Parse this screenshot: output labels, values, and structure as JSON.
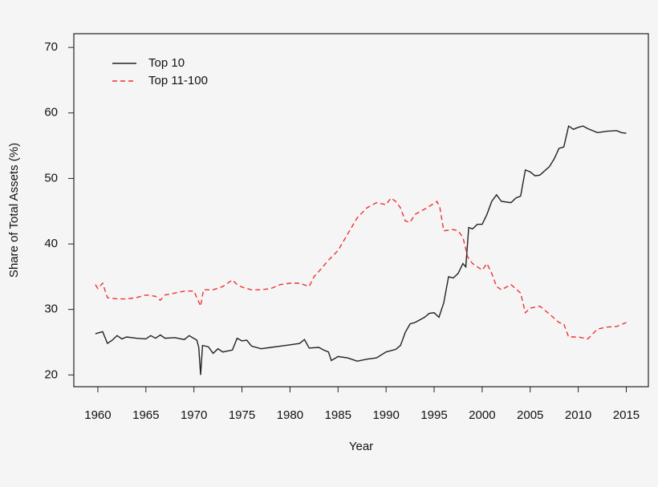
{
  "chart_data": {
    "type": "line",
    "xlabel": "Year",
    "ylabel": "Share of Total Assets (%)",
    "xlim": [
      1957.5,
      2017.3
    ],
    "ylim": [
      18.2,
      72.1
    ],
    "xticks": [
      1960,
      1965,
      1970,
      1975,
      1980,
      1985,
      1990,
      1995,
      2000,
      2005,
      2010,
      2015
    ],
    "yticks": [
      20,
      30,
      40,
      50,
      60,
      70
    ],
    "legend": "top-left",
    "series": [
      {
        "name": "Top 10",
        "color": "#222222",
        "linestyle": "solid",
        "x": [
          1959.75,
          1960.5,
          1961,
          1961.5,
          1962,
          1962.5,
          1963,
          1964,
          1965,
          1965.5,
          1966,
          1966.5,
          1967,
          1968,
          1969,
          1969.5,
          1970.3,
          1970.5,
          1970.7,
          1970.9,
          1971.5,
          1972,
          1972.5,
          1973,
          1974,
          1974.5,
          1975,
          1975.5,
          1976,
          1977,
          1978,
          1979,
          1980,
          1981,
          1981.5,
          1982,
          1983,
          1983.5,
          1984,
          1984.3,
          1985,
          1986,
          1987,
          1988,
          1989,
          1990,
          1991,
          1991.5,
          1992,
          1992.5,
          1993,
          1994,
          1994.5,
          1995,
          1995.5,
          1996,
          1996.5,
          1997,
          1997.5,
          1998,
          1998.3,
          1998.6,
          1999,
          1999.5,
          2000,
          2000.5,
          2001,
          2001.5,
          2002,
          2003,
          2003.5,
          2004,
          2004.5,
          2005,
          2005.5,
          2006,
          2007,
          2007.5,
          2008,
          2008.5,
          2009,
          2009.5,
          2010,
          2010.5,
          2011,
          2012,
          2013,
          2014,
          2014.5,
          2015
        ],
        "values": [
          26.3,
          26.6,
          24.8,
          25.3,
          26.0,
          25.5,
          25.8,
          25.6,
          25.5,
          26.0,
          25.6,
          26.1,
          25.6,
          25.7,
          25.4,
          26.0,
          25.3,
          24.2,
          20.0,
          24.5,
          24.3,
          23.3,
          24.0,
          23.5,
          23.8,
          25.6,
          25.2,
          25.3,
          24.4,
          24.0,
          24.2,
          24.4,
          24.6,
          24.8,
          25.4,
          24.1,
          24.2,
          23.8,
          23.5,
          22.2,
          22.8,
          22.6,
          22.1,
          22.4,
          22.6,
          23.5,
          23.9,
          24.5,
          26.5,
          27.8,
          28.0,
          28.8,
          29.4,
          29.5,
          28.8,
          31.0,
          35.0,
          34.8,
          35.5,
          37.0,
          36.5,
          42.5,
          42.3,
          43.0,
          43.0,
          44.5,
          46.5,
          47.5,
          46.5,
          46.3,
          47.0,
          47.3,
          51.3,
          51.0,
          50.4,
          50.5,
          51.8,
          53.0,
          54.6,
          54.8,
          58.0,
          57.5,
          57.8,
          58.0,
          57.6,
          57.0,
          57.2,
          57.3,
          57.0,
          56.9
        ]
      },
      {
        "name": "Top 11-100",
        "color": "#ee3333",
        "linestyle": "dashed",
        "x": [
          1959.75,
          1960,
          1960.5,
          1961,
          1962,
          1963,
          1964,
          1965,
          1966,
          1966.5,
          1967,
          1968,
          1969,
          1970,
          1970.7,
          1971,
          1972,
          1973,
          1974,
          1974.5,
          1975,
          1976,
          1977,
          1978,
          1979,
          1980,
          1981,
          1982,
          1982.5,
          1983,
          1984,
          1985,
          1986,
          1987,
          1988,
          1989,
          1990,
          1990.5,
          1991,
          1991.5,
          1992,
          1992.5,
          1993,
          1994,
          1995,
          1995.3,
          1995.6,
          1996,
          1997,
          1997.5,
          1998,
          1998.5,
          1999,
          2000,
          2000.5,
          2001,
          2001.5,
          2002,
          2003,
          2004,
          2004.5,
          2005,
          2006,
          2007,
          2008,
          2008.5,
          2009,
          2010,
          2011,
          2012,
          2013,
          2014,
          2015
        ],
        "values": [
          33.8,
          33.2,
          34.0,
          31.8,
          31.6,
          31.6,
          31.8,
          32.2,
          32.0,
          31.4,
          32.2,
          32.5,
          32.8,
          32.8,
          30.5,
          33.0,
          33.0,
          33.5,
          34.5,
          33.8,
          33.4,
          33.0,
          33.0,
          33.2,
          33.8,
          34.0,
          34.0,
          33.5,
          35.0,
          35.8,
          37.5,
          39.0,
          41.5,
          44.0,
          45.5,
          46.3,
          46.0,
          47.0,
          46.5,
          45.5,
          43.5,
          43.3,
          44.5,
          45.3,
          46.2,
          46.5,
          45.5,
          42.0,
          42.2,
          42.0,
          41.0,
          38.0,
          37.0,
          36.0,
          37.0,
          35.5,
          33.5,
          33.0,
          33.8,
          32.5,
          29.5,
          30.2,
          30.5,
          29.3,
          28.0,
          27.8,
          25.8,
          25.8,
          25.5,
          27.0,
          27.3,
          27.4,
          28.0
        ]
      }
    ]
  }
}
